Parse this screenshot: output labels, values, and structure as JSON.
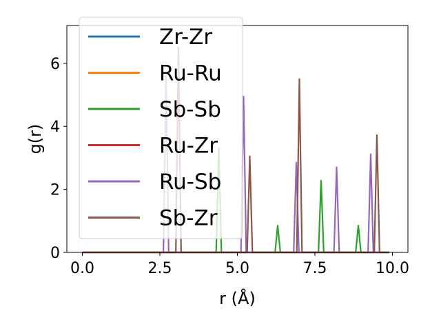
{
  "chart_data": {
    "type": "line",
    "title": "",
    "xlabel": "r (Å)",
    "ylabel": "g(r)",
    "xlim": [
      -0.5,
      10.5
    ],
    "ylim": [
      0,
      7.2
    ],
    "xticks": [
      0.0,
      2.5,
      5.0,
      7.5,
      10.0
    ],
    "xtick_labels": [
      "0.0",
      "2.5",
      "5.0",
      "7.5",
      "10.0"
    ],
    "yticks": [
      0,
      2,
      4,
      6
    ],
    "ytick_labels": [
      "0",
      "2",
      "4",
      "6"
    ],
    "grid": false,
    "legend_position": "top-left",
    "r_range": [
      0.0,
      9.9
    ],
    "series": [
      {
        "name": "Zr-Zr",
        "color": "#1f77b4",
        "peaks": []
      },
      {
        "name": "Ru-Ru",
        "color": "#ff7f0e",
        "peaks": []
      },
      {
        "name": "Sb-Sb",
        "color": "#2ca02c",
        "peaks": [
          [
            4.4,
            3.3
          ],
          [
            6.3,
            0.85
          ],
          [
            7.7,
            2.28
          ],
          [
            8.9,
            0.85
          ]
        ]
      },
      {
        "name": "Ru-Zr",
        "color": "#d62728",
        "peaks": []
      },
      {
        "name": "Ru-Sb",
        "color": "#9467bd",
        "peaks": [
          [
            2.7,
            5.6
          ],
          [
            5.2,
            4.95
          ],
          [
            6.9,
            2.85
          ],
          [
            8.2,
            2.7
          ],
          [
            9.3,
            3.12
          ]
        ]
      },
      {
        "name": "Sb-Zr",
        "color": "#8c564b",
        "peaks": [
          [
            3.1,
            6.5
          ],
          [
            5.4,
            3.05
          ],
          [
            7.0,
            5.5
          ],
          [
            9.5,
            3.72
          ]
        ]
      }
    ]
  }
}
